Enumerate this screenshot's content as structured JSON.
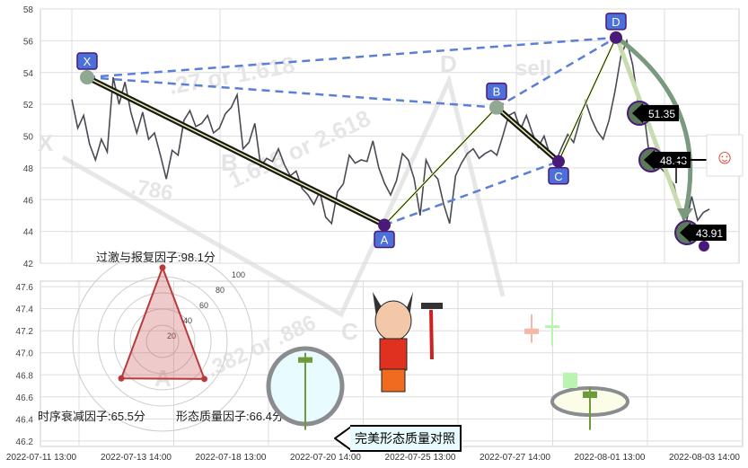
{
  "chart_data": [
    {
      "type": "line",
      "y_ticks": [
        "58",
        "56",
        "54",
        "52",
        "50",
        "48",
        "46",
        "44",
        "42"
      ],
      "ylim": [
        42,
        58
      ],
      "grid": true,
      "price_series": [
        52.3,
        50.5,
        51.3,
        49.5,
        48.5,
        49.8,
        49.0,
        53.7,
        52.0,
        53.4,
        51.5,
        50.2,
        51.5,
        49.8,
        50.2,
        48.8,
        47.3,
        49.1,
        48.8,
        51.0,
        51.6,
        50.6,
        50.8,
        51.3,
        50.2,
        50.5,
        51.4,
        51.8,
        52.6,
        49.2,
        49.6,
        50.8,
        48.1,
        48.6,
        48.4,
        49.2,
        48.2,
        47.5,
        47.8,
        46.7,
        46.3,
        45.7,
        46.5,
        44.9,
        44.5,
        46.5,
        47.0,
        48.8,
        48.3,
        48.5,
        48.4,
        49.7,
        48.0,
        47.0,
        46.3,
        47.2,
        48.9,
        48.5,
        47.3,
        45.0,
        48.5,
        47.7,
        47.3,
        45.7,
        44.5,
        47.5,
        48.3,
        48.9,
        49.2,
        48.6,
        48.9,
        49.1,
        48.8,
        50.0,
        51.3,
        51.5,
        50.4,
        51.3,
        50.2,
        49.3,
        50.0,
        48.8,
        48.4,
        49.3,
        50.1,
        49.6,
        50.9,
        52.2,
        51.1,
        50.3,
        49.8,
        51.0,
        52.8,
        55.0,
        56.0,
        54.5,
        51.9,
        51.2,
        48.3,
        48.2,
        47.9,
        47.5,
        46.9,
        45.3,
        44.4,
        46.2,
        44.7,
        45.2,
        45.4
      ],
      "pattern_points": [
        {
          "label": "X",
          "value": 53.7
        },
        {
          "label": "A",
          "value": 44.4
        },
        {
          "label": "B",
          "value": 51.8
        },
        {
          "label": "C",
          "value": 48.4
        },
        {
          "label": "D",
          "value": 56.2
        }
      ],
      "price_callouts": [
        "51.35",
        "48.43",
        "43.91"
      ]
    },
    {
      "type": "bar",
      "y_ticks": [
        "47.6",
        "47.4",
        "47.2",
        "47.0",
        "46.8",
        "46.6",
        "46.4",
        "46.2"
      ],
      "ylim": [
        46.15,
        47.65
      ],
      "x_ticks": [
        "2022-07-11 13:00",
        "2022-07-13 14:00",
        "2022-07-18 13:00",
        "2022-07-20 14:00",
        "2022-07-25 13:00",
        "2022-07-27 14:00",
        "2022-08-01 13:00",
        "2022-08-03 14:00"
      ],
      "candles": [
        {
          "open": 46.96,
          "close": 46.91,
          "high": 47.0,
          "low": 46.3,
          "color": "#6e9a3c"
        },
        {
          "open": 47.22,
          "close": 47.17,
          "high": 47.35,
          "low": 47.09,
          "color": "#f5b8a8"
        },
        {
          "open": 47.25,
          "close": 47.23,
          "high": 47.4,
          "low": 47.06,
          "color": "#b9f5b0"
        },
        {
          "open": 46.82,
          "close": 46.68,
          "high": 46.82,
          "low": 46.68,
          "color": "#b9f5b0"
        },
        {
          "open": 46.65,
          "close": 46.59,
          "high": 46.69,
          "low": 46.3,
          "color": "#6e9a3c"
        }
      ]
    },
    {
      "type": "radar",
      "ticks": [
        "20",
        "40",
        "60",
        "80",
        "100"
      ],
      "factors": [
        {
          "label": "过激与报复因子:98.1分",
          "value": 98.1
        },
        {
          "label": "时序衰减因子:65.5分",
          "value": 65.5
        },
        {
          "label": "形态质量因子:66.4分",
          "value": 66.4
        }
      ]
    }
  ],
  "watermark": {
    "ratios": [
      ".27 or 1.618",
      "1.618 or 2.618",
      ".786",
      ".382 or .886"
    ],
    "points": [
      "X",
      "D",
      "C",
      "A",
      "B"
    ],
    "signal": "sell"
  },
  "compare_button": "完美形态质量对照",
  "colors": {
    "dashed": "#5b7fd6",
    "label_bg": "#4d6fd8",
    "label_border": "#4a1a7a",
    "arc": "#7a9a80",
    "radar": "#b83a3a"
  }
}
